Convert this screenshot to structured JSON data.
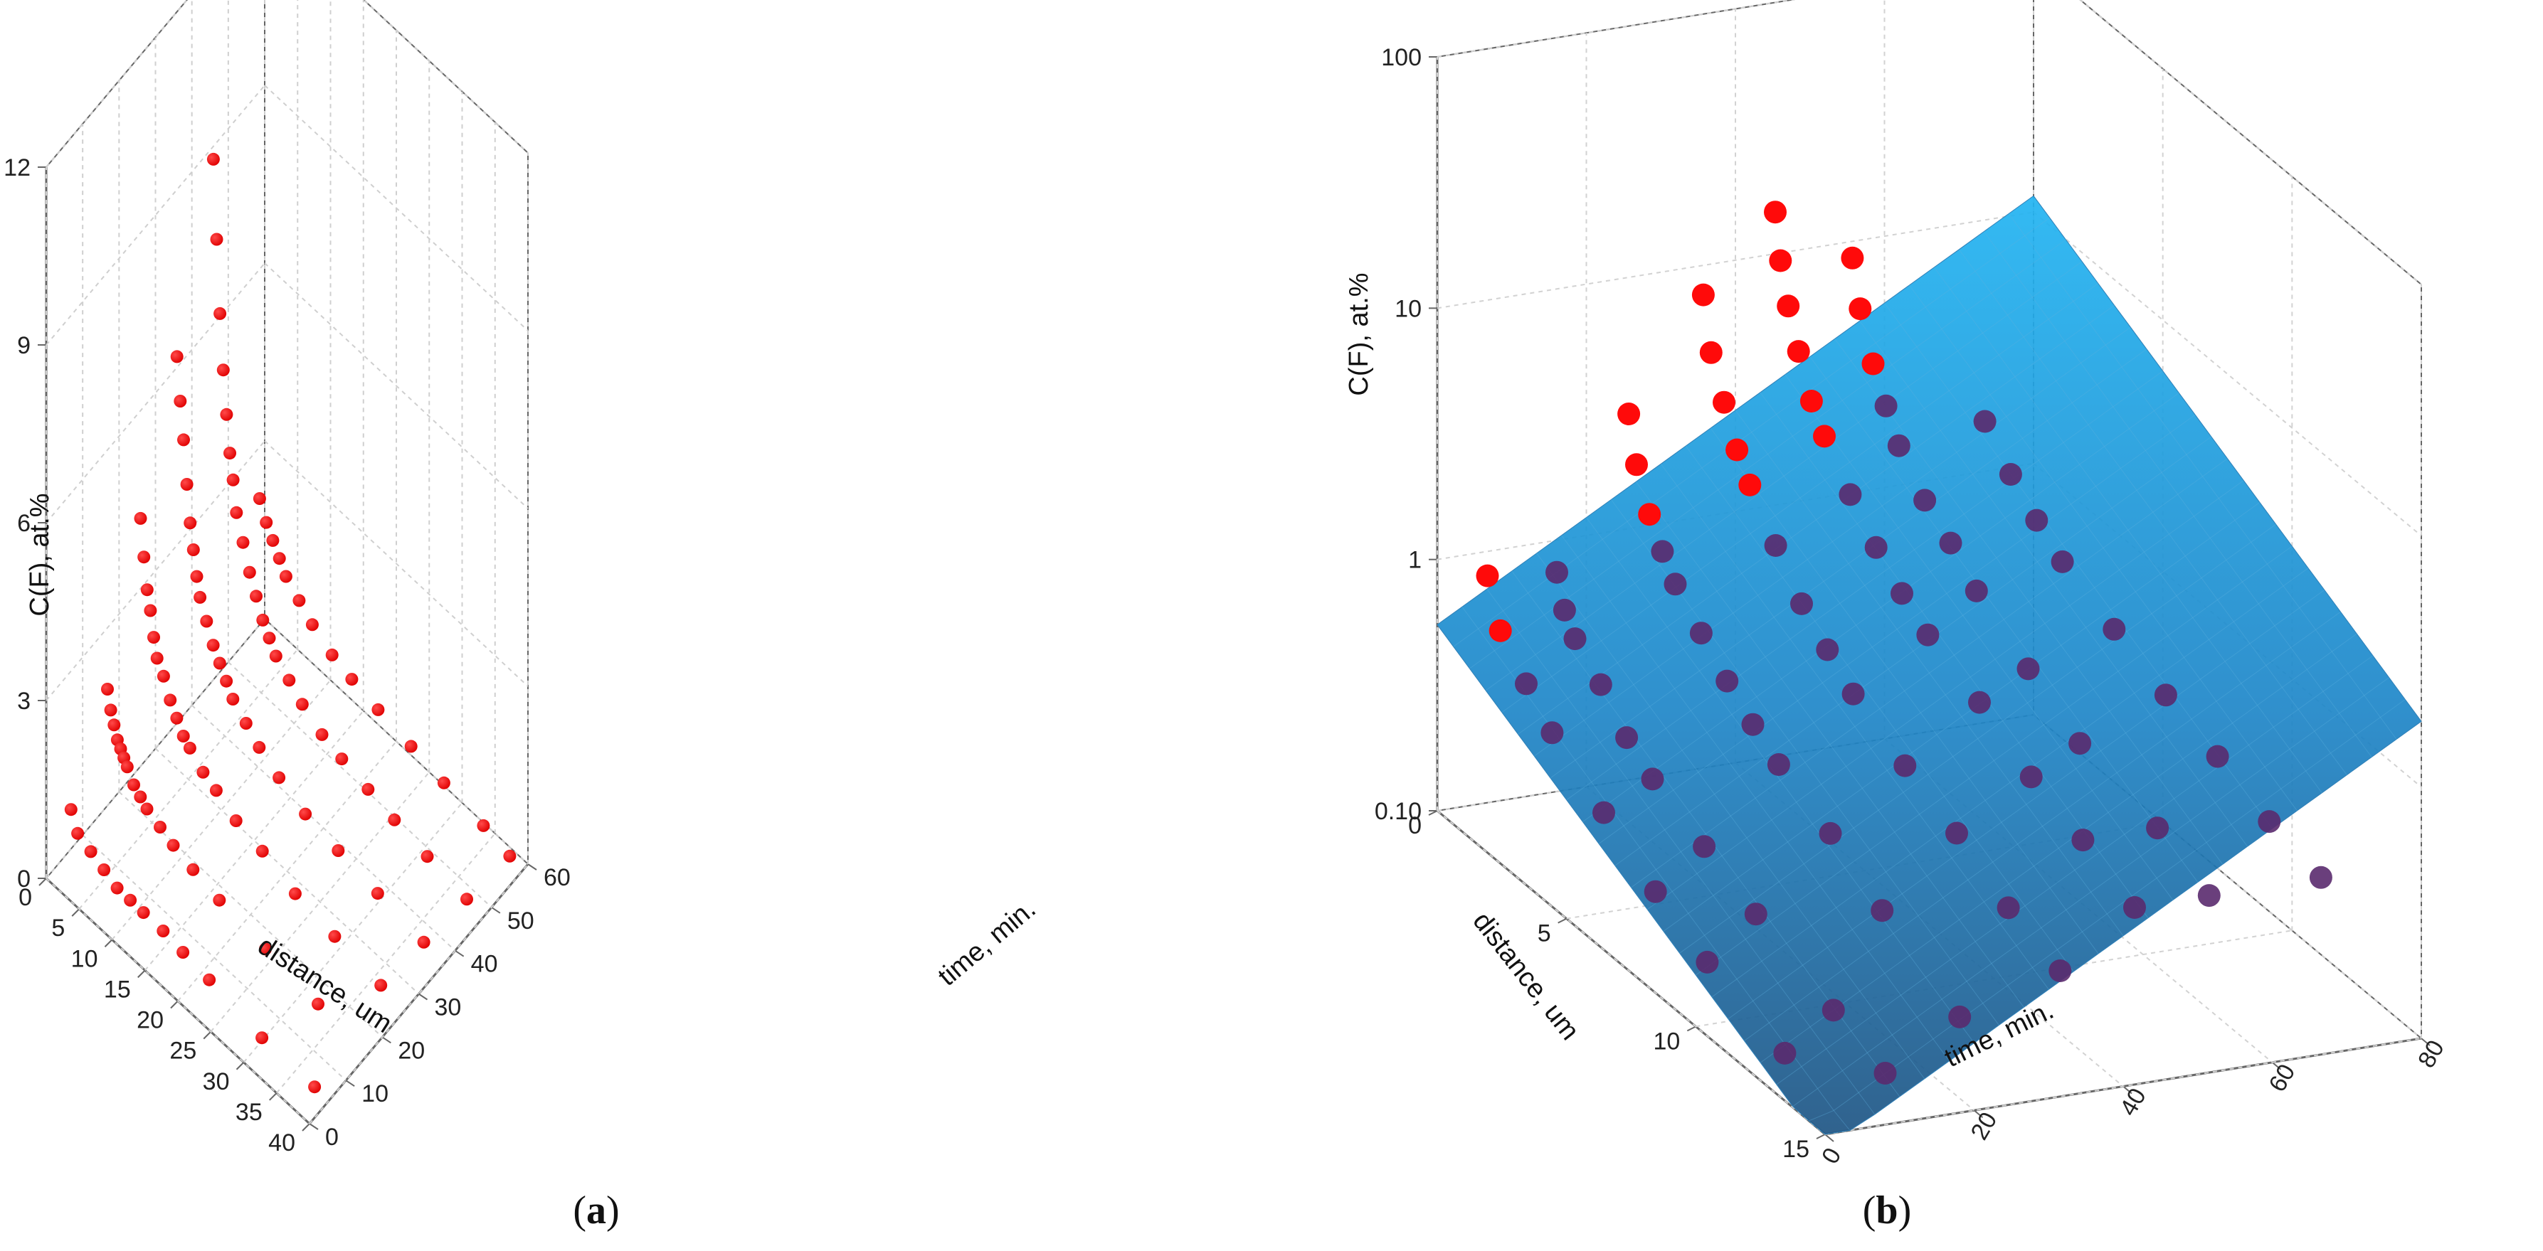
{
  "chart_data": [
    {
      "type": "scatter3d",
      "panel_label": "a",
      "xlabel": "distance, um",
      "ylabel": "time, min.",
      "zlabel": "C(F), at.%",
      "x_ticks": [
        "0",
        "5",
        "10",
        "15",
        "20",
        "25",
        "30",
        "35",
        "40"
      ],
      "y_ticks": [
        "0",
        "10",
        "20",
        "30",
        "40",
        "50",
        "60"
      ],
      "z_ticks": [
        "0",
        "3",
        "6",
        "9",
        "12"
      ],
      "x_range": [
        0,
        40
      ],
      "y_range": [
        0,
        60
      ],
      "z_range": [
        0,
        12
      ],
      "marker_color": "#ff0000",
      "series": [
        {
          "time": 5,
          "points": [
            [
              1,
              0.9
            ],
            [
              2,
              0.6
            ],
            [
              4,
              0.5
            ],
            [
              6,
              0.4
            ],
            [
              8,
              0.3
            ],
            [
              10,
              0.3
            ],
            [
              12,
              0.3
            ],
            [
              15,
              0.3
            ],
            [
              18,
              0.25
            ],
            [
              22,
              0.2
            ],
            [
              30,
              0.05
            ],
            [
              38,
              0.05
            ]
          ]
        },
        {
          "time": 15,
          "points": [
            [
              1,
              2.2
            ],
            [
              1.5,
              1.9
            ],
            [
              2,
              1.7
            ],
            [
              2.5,
              1.5
            ],
            [
              3,
              1.4
            ],
            [
              3.5,
              1.3
            ],
            [
              4,
              1.2
            ],
            [
              5,
              1.0
            ],
            [
              6,
              0.9
            ],
            [
              7,
              0.8
            ],
            [
              9,
              0.7
            ],
            [
              11,
              0.6
            ],
            [
              14,
              0.5
            ],
            [
              18,
              0.4
            ],
            [
              25,
              0.3
            ],
            [
              33,
              0.2
            ]
          ]
        },
        {
          "time": 25,
          "points": [
            [
              0.5,
              4.3
            ],
            [
              1,
              3.7
            ],
            [
              1.5,
              3.2
            ],
            [
              2,
              2.9
            ],
            [
              2.5,
              2.5
            ],
            [
              3,
              2.2
            ],
            [
              4,
              2.0
            ],
            [
              5,
              1.7
            ],
            [
              6,
              1.5
            ],
            [
              7,
              1.3
            ],
            [
              8,
              1.2
            ],
            [
              10,
              1.0
            ],
            [
              12,
              0.9
            ],
            [
              15,
              0.7
            ],
            [
              19,
              0.6
            ],
            [
              24,
              0.4
            ],
            [
              30,
              0.3
            ],
            [
              37,
              0.2
            ]
          ]
        },
        {
          "time": 35,
          "points": [
            [
              0.5,
              6.3
            ],
            [
              1,
              5.6
            ],
            [
              1.5,
              5.0
            ],
            [
              2,
              4.3
            ],
            [
              2.5,
              3.7
            ],
            [
              3,
              3.3
            ],
            [
              3.5,
              2.9
            ],
            [
              4,
              2.6
            ],
            [
              5,
              2.3
            ],
            [
              6,
              2.0
            ],
            [
              7,
              1.8
            ],
            [
              8,
              1.6
            ],
            [
              9,
              1.4
            ],
            [
              11,
              1.2
            ],
            [
              13,
              1.0
            ],
            [
              16,
              0.8
            ],
            [
              20,
              0.6
            ],
            [
              25,
              0.5
            ],
            [
              31,
              0.4
            ],
            [
              38,
              0.3
            ]
          ]
        },
        {
          "time": 45,
          "points": [
            [
              0.2,
              11.7
            ],
            [
              0.5,
              8.9
            ],
            [
              1,
              7.6
            ],
            [
              1.5,
              6.4
            ],
            [
              2,
              5.5
            ],
            [
              2.5,
              4.8
            ],
            [
              3,
              4.2
            ],
            [
              3.5,
              3.8
            ],
            [
              4,
              3.3
            ],
            [
              5,
              2.9
            ],
            [
              6,
              2.5
            ],
            [
              7,
              2.2
            ],
            [
              8,
              1.9
            ],
            [
              9,
              1.7
            ],
            [
              10,
              1.5
            ],
            [
              12,
              1.3
            ],
            [
              14,
              1.1
            ],
            [
              17,
              0.9
            ],
            [
              20,
              0.8
            ],
            [
              24,
              0.7
            ],
            [
              28,
              0.6
            ],
            [
              33,
              0.5
            ],
            [
              39,
              0.4
            ]
          ]
        },
        {
          "time": 55,
          "points": [
            [
              2,
              2.6
            ],
            [
              3,
              2.3
            ],
            [
              4,
              2.1
            ],
            [
              5,
              1.9
            ],
            [
              6,
              1.7
            ],
            [
              8,
              1.5
            ],
            [
              10,
              1.3
            ],
            [
              13,
              1.1
            ],
            [
              16,
              1.0
            ],
            [
              20,
              0.9
            ],
            [
              25,
              0.8
            ],
            [
              30,
              0.7
            ],
            [
              36,
              0.6
            ],
            [
              40,
              0.5
            ]
          ]
        }
      ]
    },
    {
      "type": "scatter3d_surface",
      "panel_label": "b",
      "xlabel": "distance, um",
      "ylabel": "time, min.",
      "zlabel": "C(F), at.%",
      "x_ticks": [
        "0",
        "5",
        "10",
        "15"
      ],
      "y_ticks": [
        "0",
        "20",
        "40",
        "60",
        "80"
      ],
      "z_ticks": [
        "0.10",
        "1",
        "10",
        "100"
      ],
      "x_range": [
        0,
        15
      ],
      "y_range": [
        0,
        80
      ],
      "z_range": [
        0.1,
        100
      ],
      "z_scale": "log",
      "marker_color": "#ff0000",
      "surface_colors": [
        "#19a8ec",
        "#1e5a8c"
      ],
      "series": [
        {
          "time": 5,
          "points": [
            [
              0.5,
              0.9
            ],
            [
              1,
              0.6
            ],
            [
              2,
              0.45
            ],
            [
              3,
              0.35
            ],
            [
              5,
              0.25
            ],
            [
              7,
              0.18
            ],
            [
              9,
              0.14
            ],
            [
              12,
              0.11
            ]
          ]
        },
        {
          "time": 15,
          "points": [
            [
              0.3,
              0.8
            ],
            [
              0.6,
              0.6
            ],
            [
              1,
              0.5
            ],
            [
              2,
              0.4
            ],
            [
              3,
              0.3
            ],
            [
              4,
              0.25
            ],
            [
              6,
              0.2
            ],
            [
              8,
              0.16
            ],
            [
              11,
              0.12
            ],
            [
              13,
              0.1
            ]
          ]
        },
        {
          "time": 25,
          "points": [
            [
              0.2,
              3.0
            ],
            [
              0.5,
              2.0
            ],
            [
              1,
              1.4
            ],
            [
              1.5,
              1.1
            ],
            [
              2,
              0.9
            ],
            [
              3,
              0.7
            ],
            [
              4,
              0.55
            ],
            [
              5,
              0.45
            ],
            [
              6,
              0.38
            ],
            [
              8,
              0.3
            ],
            [
              10,
              0.22
            ],
            [
              13,
              0.15
            ]
          ]
        },
        {
          "time": 35,
          "points": [
            [
              0.2,
              8.0
            ],
            [
              0.5,
              5.0
            ],
            [
              1,
              3.5
            ],
            [
              1.5,
              2.5
            ],
            [
              2,
              2.0
            ],
            [
              3,
              1.4
            ],
            [
              4,
              1.0
            ],
            [
              5,
              0.8
            ],
            [
              6,
              0.65
            ],
            [
              8,
              0.5
            ],
            [
              10,
              0.4
            ],
            [
              12,
              0.3
            ],
            [
              14,
              0.25
            ]
          ]
        },
        {
          "time": 45,
          "points": [
            [
              0.1,
              15.0
            ],
            [
              0.3,
              10.0
            ],
            [
              0.6,
              7.0
            ],
            [
              1,
              5.0
            ],
            [
              1.5,
              3.5
            ],
            [
              2,
              2.8
            ],
            [
              3,
              2.0
            ],
            [
              4,
              1.5
            ],
            [
              5,
              1.2
            ],
            [
              6,
              1.0
            ],
            [
              8,
              0.8
            ],
            [
              10,
              0.6
            ],
            [
              12,
              0.5
            ],
            [
              14,
              0.4
            ]
          ]
        },
        {
          "time": 55,
          "points": [
            [
              0.2,
              9.0
            ],
            [
              0.5,
              6.0
            ],
            [
              1,
              4.0
            ],
            [
              1.5,
              3.0
            ],
            [
              2,
              2.3
            ],
            [
              3,
              1.7
            ],
            [
              4,
              1.4
            ],
            [
              5,
              1.1
            ],
            [
              7,
              0.8
            ],
            [
              9,
              0.6
            ],
            [
              12,
              0.5
            ],
            [
              14,
              0.4
            ]
          ]
        },
        {
          "time": 70,
          "points": [
            [
              1,
              2.0
            ],
            [
              2,
              1.5
            ],
            [
              3,
              1.2
            ],
            [
              4,
              1.0
            ],
            [
              6,
              0.8
            ],
            [
              8,
              0.65
            ],
            [
              10,
              0.55
            ],
            [
              12,
              0.45
            ],
            [
              14,
              0.4
            ]
          ]
        }
      ]
    }
  ]
}
